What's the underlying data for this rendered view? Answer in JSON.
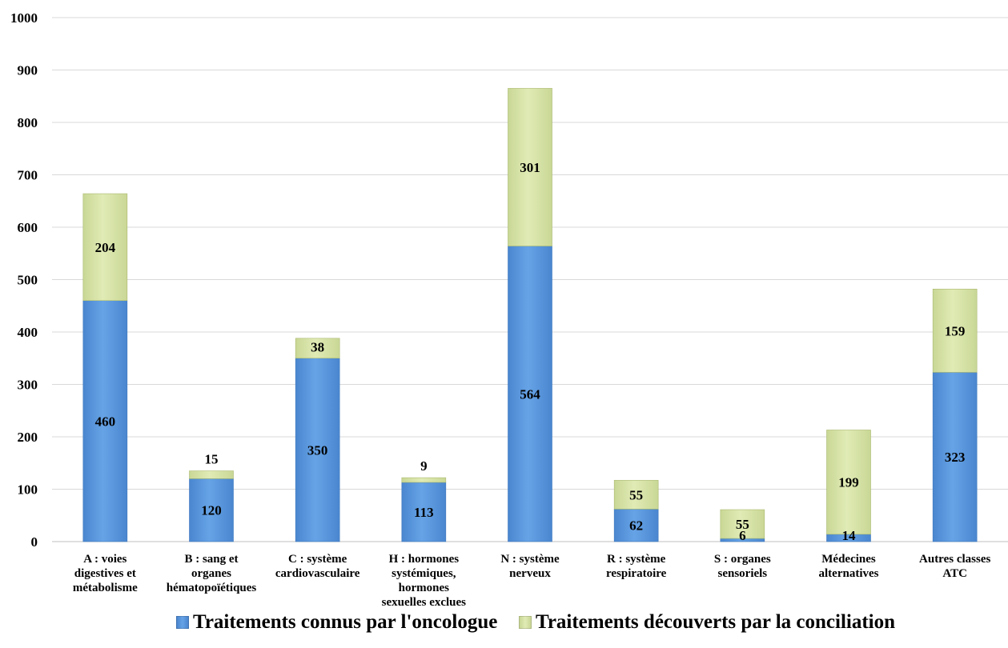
{
  "chart_data": {
    "type": "bar",
    "stacked": true,
    "categories": [
      [
        "A : voies",
        "digestives et",
        "métabolisme"
      ],
      [
        "B : sang et",
        "organes",
        "hématopoïétiques"
      ],
      [
        "C : système",
        "cardiovasculaire"
      ],
      [
        "H : hormones",
        "systémiques,",
        "hormones",
        "sexuelles exclues"
      ],
      [
        "N : système",
        "nerveux"
      ],
      [
        "R : système",
        "respiratoire"
      ],
      [
        "S : organes",
        "sensoriels"
      ],
      [
        "Médecines",
        "alternatives"
      ],
      [
        "Autres classes",
        "ATC"
      ]
    ],
    "series": [
      {
        "name": "Traitements connus par l'oncologue",
        "color": "#5b9bdf",
        "values": [
          460,
          120,
          350,
          113,
          564,
          62,
          6,
          14,
          323
        ]
      },
      {
        "name": "Traitements découverts par la conciliation",
        "color": "#d7e4a6",
        "values": [
          204,
          15,
          38,
          9,
          301,
          55,
          55,
          199,
          159
        ]
      }
    ],
    "ylim": [
      0,
      1000
    ],
    "yticks": [
      0,
      100,
      200,
      300,
      400,
      500,
      600,
      700,
      800,
      900,
      1000
    ],
    "grid": true,
    "legend_position": "bottom"
  }
}
